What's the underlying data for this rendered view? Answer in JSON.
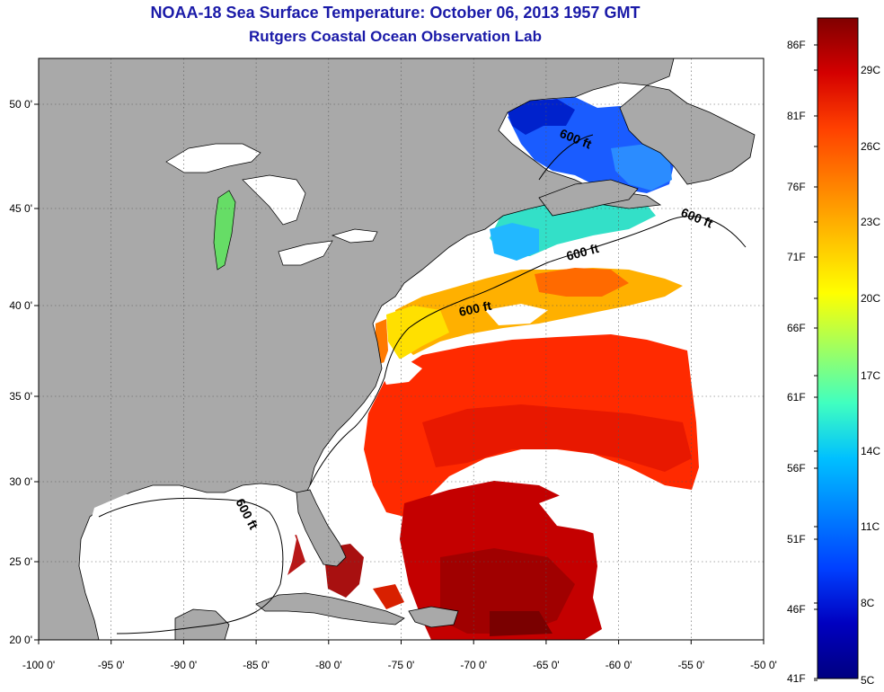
{
  "header": {
    "title": "NOAA-18 Sea Surface Temperature:  October 06, 2013 1957 GMT",
    "subtitle": "Rutgers Coastal Ocean Observation Lab"
  },
  "map": {
    "lon_labels": [
      "-100 0'",
      "-95 0'",
      "-90 0'",
      "-85 0'",
      "-80 0'",
      "-75 0'",
      "-70 0'",
      "-65 0'",
      "-60 0'",
      "-55 0'",
      "-50 0'"
    ],
    "lat_labels": [
      "50 0'",
      "45 0'",
      "40 0'",
      "35 0'",
      "30 0'",
      "25 0'",
      "20 0'"
    ],
    "contour_label": "600 ft",
    "colors": {
      "land": "#a9a9a9",
      "no_data": "#ffffff",
      "coast": "#000000"
    }
  },
  "colorbar": {
    "fahrenheit_labels": [
      "86F",
      "81F",
      "76F",
      "71F",
      "66F",
      "61F",
      "56F",
      "51F",
      "46F",
      "41F"
    ],
    "celsius_labels": [
      "29C",
      "26C",
      "23C",
      "20C",
      "17C",
      "14C",
      "11C",
      "8C",
      "5C"
    ],
    "gradient_stops": [
      "#800000",
      "#d40000",
      "#ff4000",
      "#ff8000",
      "#ffc000",
      "#ffff00",
      "#a0ff60",
      "#40ffc0",
      "#00c0ff",
      "#0080ff",
      "#0040ff",
      "#0000c0",
      "#000080"
    ]
  }
}
